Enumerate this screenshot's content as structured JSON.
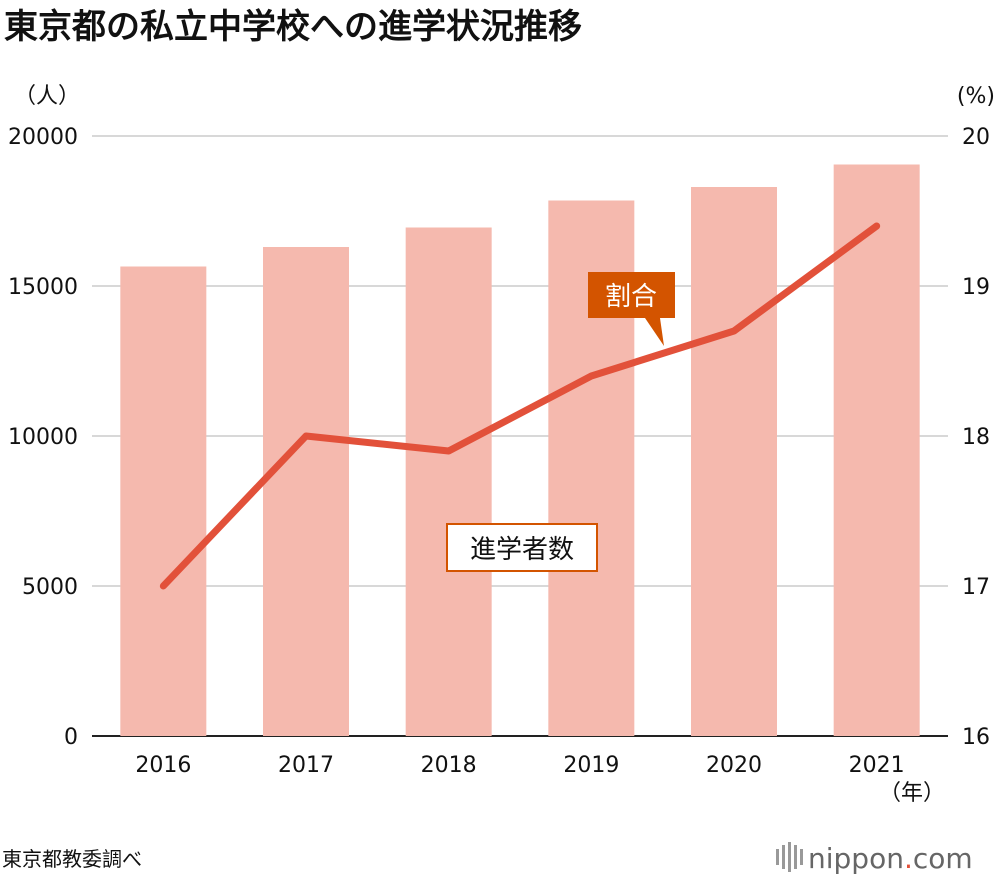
{
  "title": "東京都の私立中学校への進学状況推移",
  "source": "東京都教委調べ",
  "logo": {
    "text": "nippon",
    "dot": ".",
    "suffix": "com"
  },
  "colors": {
    "bar": "#f5b9ae",
    "line": "#e2513a",
    "grid": "#cccccc",
    "callout_ratio_bg": "#d35400",
    "callout_count_border": "#d35400"
  },
  "callouts": {
    "ratio": "割合",
    "count": "進学者数"
  },
  "chart_data": {
    "type": "bar+line",
    "categories": [
      "2016",
      "2017",
      "2018",
      "2019",
      "2020",
      "2021"
    ],
    "x_unit": "（年）",
    "left_axis": {
      "unit": "（人）",
      "ylim": [
        0,
        20000
      ],
      "ticks": [
        "0",
        "5000",
        "10000",
        "15000",
        "20000"
      ]
    },
    "right_axis": {
      "unit": "(%)",
      "ylim": [
        16,
        20
      ],
      "ticks": [
        "16",
        "17",
        "18",
        "19",
        "20"
      ]
    },
    "series": [
      {
        "name": "進学者数",
        "type": "bar",
        "axis": "left",
        "values": [
          15650,
          16300,
          16950,
          17850,
          18300,
          19050
        ]
      },
      {
        "name": "割合",
        "type": "line",
        "axis": "right",
        "values": [
          17.0,
          18.0,
          17.9,
          18.4,
          18.7,
          19.4
        ]
      }
    ],
    "grid": true
  }
}
